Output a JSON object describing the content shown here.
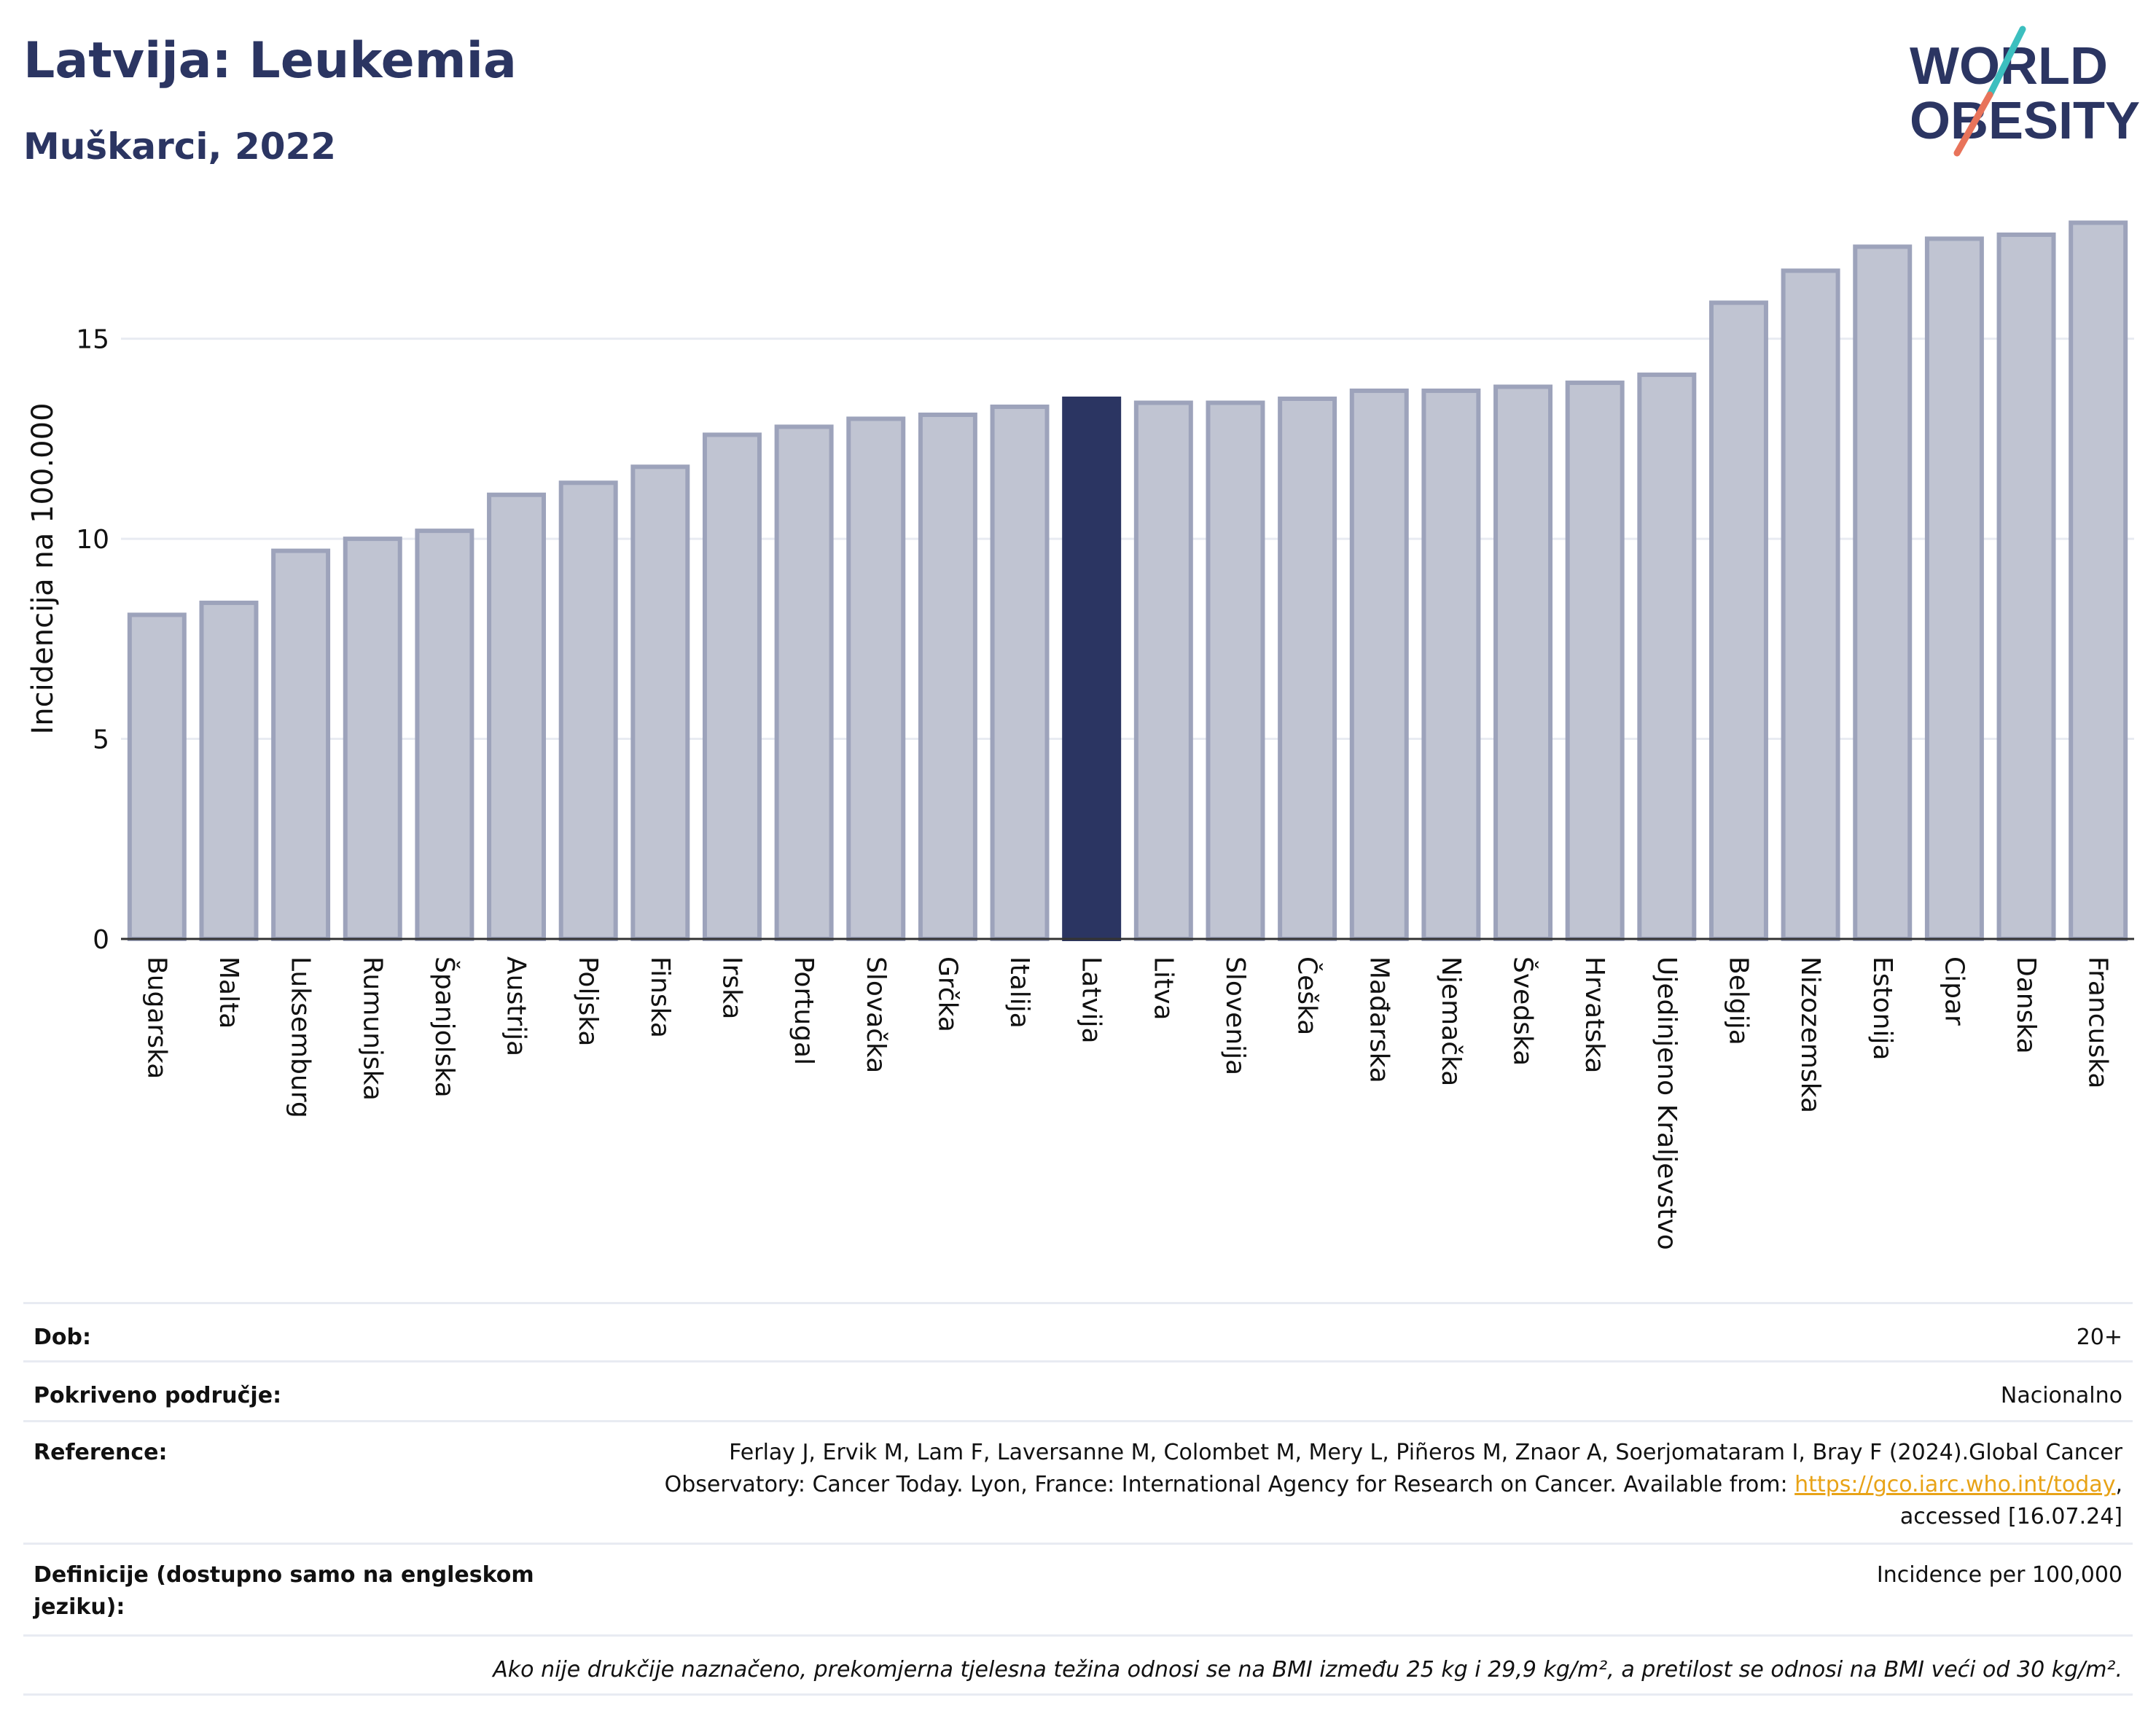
{
  "header": {
    "title": "Latvija: Leukemia",
    "subtitle": "Muškarci, 2022"
  },
  "logo": {
    "line1": "WORLD",
    "line2": "OBESITY",
    "colors": {
      "text": "#2b3562",
      "slash_top": "#3cbfbf",
      "slash_bottom": "#e8735a"
    }
  },
  "colors": {
    "bar_default": "#c0c4d2",
    "bar_border": "#9da3bb",
    "bar_highlight": "#2b3562",
    "grid": "#e8ebf2",
    "text": "#111111"
  },
  "chart_data": {
    "type": "bar",
    "ylabel": "Incidencija na 100.000",
    "xlabel": "",
    "ylim": [
      0,
      18
    ],
    "yticks": [
      0,
      5,
      10,
      15
    ],
    "grid": true,
    "highlight": "Latvija",
    "categories": [
      "Bugarska",
      "Malta",
      "Luksemburg",
      "Rumunjska",
      "Španjolska",
      "Austrija",
      "Poljska",
      "Finska",
      "Irska",
      "Portugal",
      "Slovačka",
      "Grčka",
      "Italija",
      "Latvija",
      "Litva",
      "Slovenija",
      "Češka",
      "Mađarska",
      "Njemačka",
      "Švedska",
      "Hrvatska",
      "Ujedinjeno Kraljevstvo",
      "Belgija",
      "Nizozemska",
      "Estonija",
      "Cipar",
      "Danska",
      "Francuska"
    ],
    "values": [
      8.1,
      8.4,
      9.7,
      10.0,
      10.2,
      11.1,
      11.4,
      11.8,
      12.6,
      12.8,
      13.0,
      13.1,
      13.3,
      13.5,
      13.4,
      13.4,
      13.5,
      13.7,
      13.7,
      13.8,
      13.9,
      14.1,
      15.9,
      16.7,
      17.3,
      17.5,
      17.6,
      17.9
    ]
  },
  "meta": {
    "dob_label": "Dob:",
    "dob_value": "20+",
    "area_label": "Pokriveno područje:",
    "area_value": "Nacionalno",
    "ref_label": "Reference:",
    "ref_text_1": "Ferlay J, Ervik M, Lam F, Laversanne M, Colombet M, Mery L, Piñeros M, Znaor A, Soerjomataram I, Bray F (2024).Global Cancer",
    "ref_text_2": "Observatory: Cancer Today. Lyon, France: International Agency for Research on Cancer. Available from: ",
    "ref_link": "https://gco.iarc.who.int/today",
    "ref_text_3": ",",
    "ref_text_4": "accessed [16.07.24]",
    "def_label": "Definicije (dostupno samo na engleskom jeziku):",
    "def_value": "Incidence per 100,000",
    "note": "Ako nije drukčije naznačeno, prekomjerna tjelesna težina odnosi se na BMI između 25 kg i 29,9 kg/m², a pretilost se odnosi na BMI veći od 30 kg/m²."
  }
}
